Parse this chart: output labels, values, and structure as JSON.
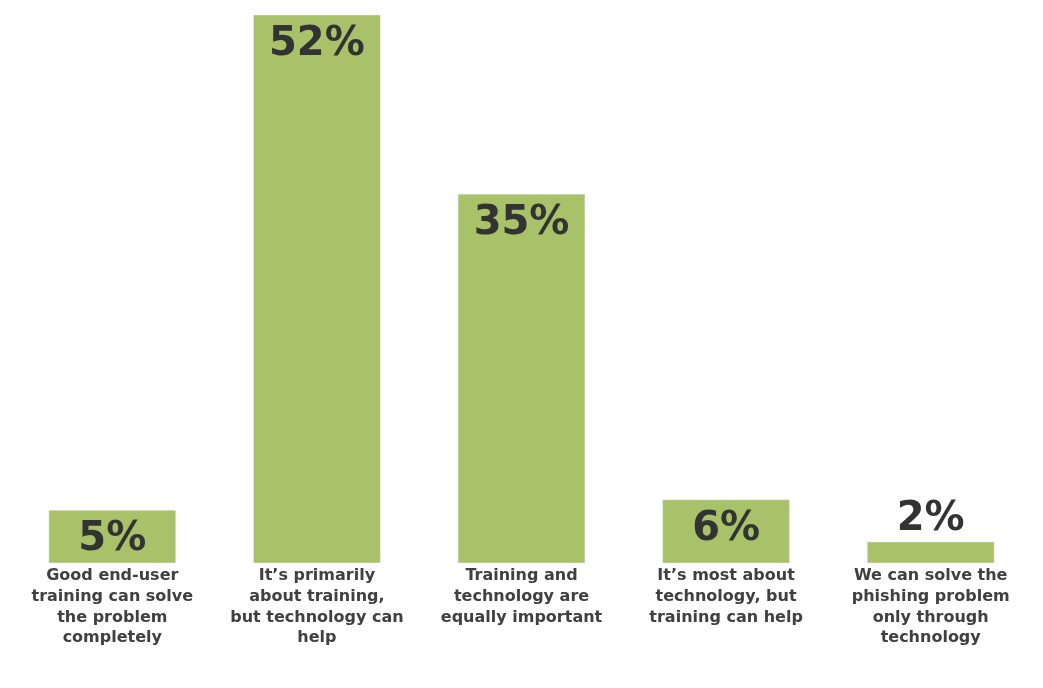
{
  "chart_data": {
    "type": "bar",
    "categories": [
      "Good end-user training can solve the problem completely",
      "It’s primarily about training, but technology can help",
      "Training and technology are equally important",
      "It’s most about technology, but training can help",
      "We can solve the phishing problem only through technology"
    ],
    "values": [
      5,
      52,
      35,
      6,
      2
    ],
    "color": "#a9c26a",
    "data_labels": true,
    "value_labels": [
      "5%",
      "52%",
      "35%",
      "6%",
      "2%"
    ],
    "legend": false
  }
}
